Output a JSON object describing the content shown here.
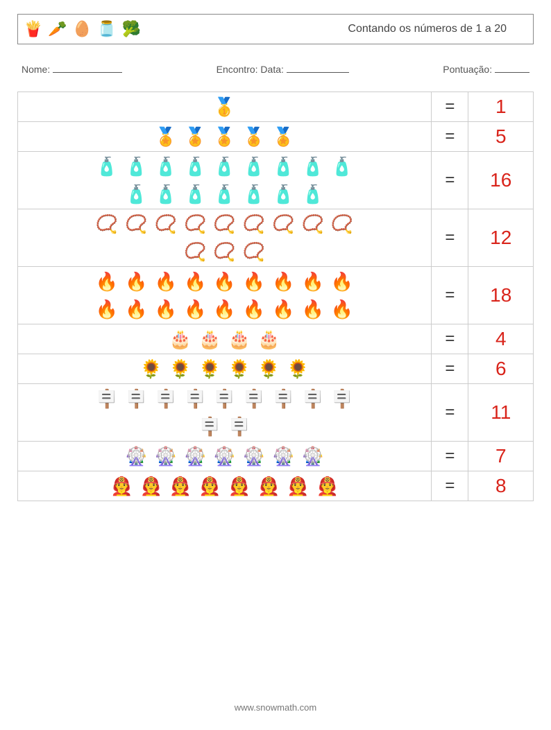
{
  "header": {
    "icons": [
      "🍟",
      "🥕",
      "🥚",
      "🫙",
      "🥦"
    ],
    "title": "Contando os números de 1 a 20"
  },
  "meta": {
    "nome_label": "Nome:",
    "encontro_label": "Encontro: Data:",
    "pontuacao_label": "Pontuação:"
  },
  "equals_sign": "=",
  "rows": [
    {
      "icon": "🥇",
      "count": 1,
      "max_per_row": 10,
      "answer": "1",
      "color": "#d9241b"
    },
    {
      "icon": "🏅",
      "count": 5,
      "max_per_row": 10,
      "answer": "5",
      "color": "#d9241b"
    },
    {
      "icon": "🧴",
      "count": 16,
      "max_per_row": 10,
      "answer": "16",
      "color": "#d9241b"
    },
    {
      "icon": "📿",
      "count": 12,
      "max_per_row": 10,
      "answer": "12",
      "color": "#d9241b"
    },
    {
      "icon": "🔥",
      "count": 18,
      "max_per_row": 10,
      "answer": "18",
      "color": "#d9241b"
    },
    {
      "icon": "🎂",
      "count": 4,
      "max_per_row": 10,
      "answer": "4",
      "color": "#d9241b"
    },
    {
      "icon": "🌻",
      "count": 6,
      "max_per_row": 10,
      "answer": "6",
      "color": "#d9241b"
    },
    {
      "icon": "🪧",
      "count": 11,
      "max_per_row": 10,
      "answer": "11",
      "color": "#d9241b"
    },
    {
      "icon": "🎡",
      "count": 7,
      "max_per_row": 10,
      "answer": "7",
      "color": "#d9241b"
    },
    {
      "icon": "👨‍🚒",
      "count": 8,
      "max_per_row": 10,
      "answer": "8",
      "color": "#d9241b"
    }
  ],
  "footer": "www.snowmath.com",
  "style": {
    "page_bg": "#ffffff",
    "border_color": "#cccccc",
    "header_border": "#888888",
    "text_color": "#444444",
    "answer_fontsize": 28,
    "equals_fontsize": 24,
    "icon_fontsize": 26
  }
}
